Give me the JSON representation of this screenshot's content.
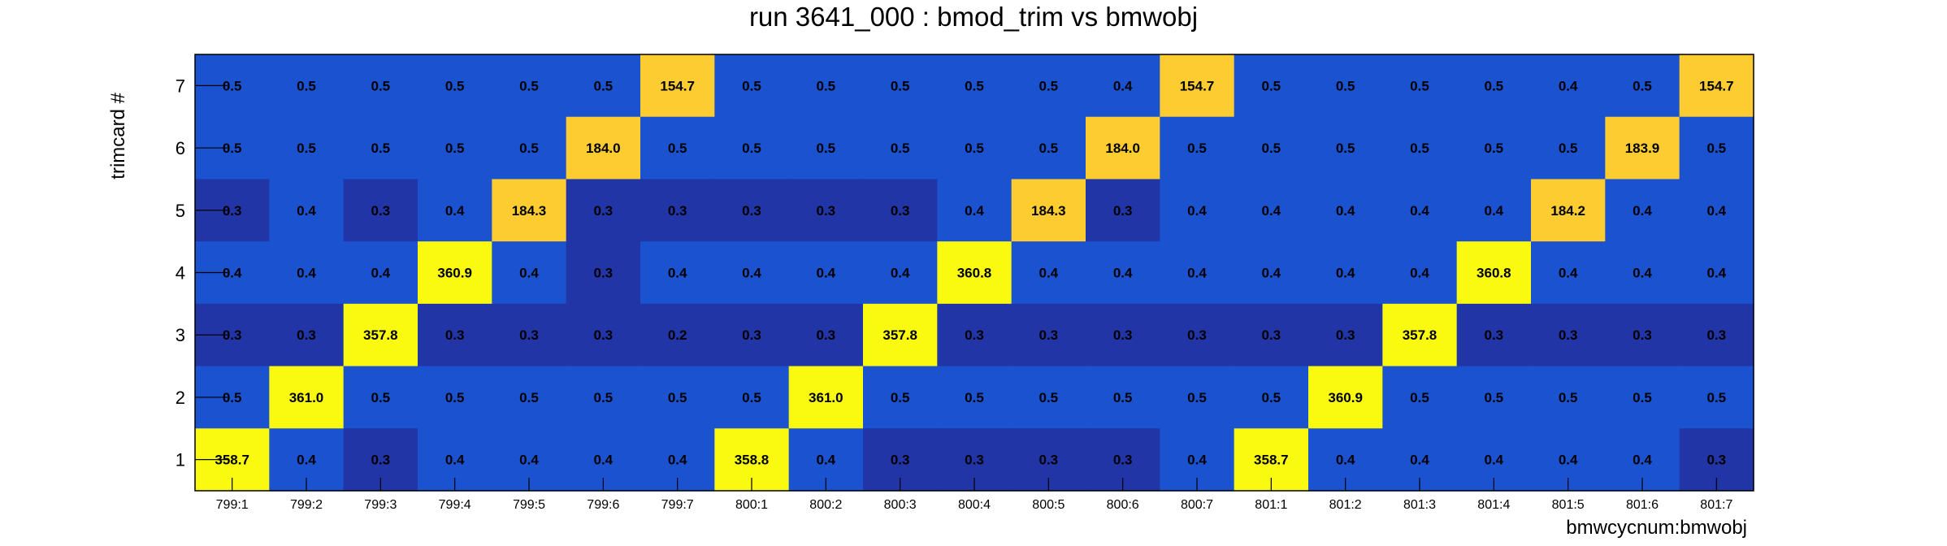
{
  "chart_data": {
    "type": "heatmap",
    "title": "run 3641_000 : bmod_trim vs bmwobj",
    "xlabel": "bmwcycnum:bmwobj",
    "ylabel": "trimcard #",
    "x_categories": [
      "799:1",
      "799:2",
      "799:3",
      "799:4",
      "799:5",
      "799:6",
      "799:7",
      "800:1",
      "800:2",
      "800:3",
      "800:4",
      "800:5",
      "800:6",
      "800:7",
      "801:1",
      "801:2",
      "801:3",
      "801:4",
      "801:5",
      "801:6",
      "801:7"
    ],
    "y_categories": [
      "7",
      "6",
      "5",
      "4",
      "3",
      "2",
      "1"
    ],
    "values": [
      [
        0.5,
        0.5,
        0.5,
        0.5,
        0.5,
        0.5,
        154.7,
        0.5,
        0.5,
        0.5,
        0.5,
        0.5,
        0.4,
        154.7,
        0.5,
        0.5,
        0.5,
        0.5,
        0.4,
        0.5,
        154.7
      ],
      [
        0.5,
        0.5,
        0.5,
        0.5,
        0.5,
        184.0,
        0.5,
        0.5,
        0.5,
        0.5,
        0.5,
        0.5,
        184.0,
        0.5,
        0.5,
        0.5,
        0.5,
        0.5,
        0.5,
        183.9,
        0.5
      ],
      [
        0.3,
        0.4,
        0.3,
        0.4,
        184.3,
        0.3,
        0.3,
        0.3,
        0.3,
        0.3,
        0.4,
        184.3,
        0.3,
        0.4,
        0.4,
        0.4,
        0.4,
        0.4,
        184.2,
        0.4,
        0.4
      ],
      [
        0.4,
        0.4,
        0.4,
        360.9,
        0.4,
        0.3,
        0.4,
        0.4,
        0.4,
        0.4,
        360.8,
        0.4,
        0.4,
        0.4,
        0.4,
        0.4,
        0.4,
        360.8,
        0.4,
        0.4,
        0.4
      ],
      [
        0.3,
        0.3,
        357.8,
        0.3,
        0.3,
        0.3,
        0.2,
        0.3,
        0.3,
        357.8,
        0.3,
        0.3,
        0.3,
        0.3,
        0.3,
        0.3,
        357.8,
        0.3,
        0.3,
        0.3,
        0.3
      ],
      [
        0.5,
        361.0,
        0.5,
        0.5,
        0.5,
        0.5,
        0.5,
        0.5,
        361.0,
        0.5,
        0.5,
        0.5,
        0.5,
        0.5,
        0.5,
        360.9,
        0.5,
        0.5,
        0.5,
        0.5,
        0.5
      ],
      [
        358.7,
        0.4,
        0.3,
        0.4,
        0.4,
        0.4,
        0.4,
        358.8,
        0.4,
        0.3,
        0.3,
        0.3,
        0.3,
        0.4,
        358.7,
        0.4,
        0.4,
        0.4,
        0.4,
        0.4,
        0.3
      ]
    ],
    "colors": {
      "low": "#2235a6",
      "mid_low": "#1a52cf",
      "high_orange": "#fccc30",
      "high_yellow": "#fafa10"
    },
    "grid": false
  }
}
